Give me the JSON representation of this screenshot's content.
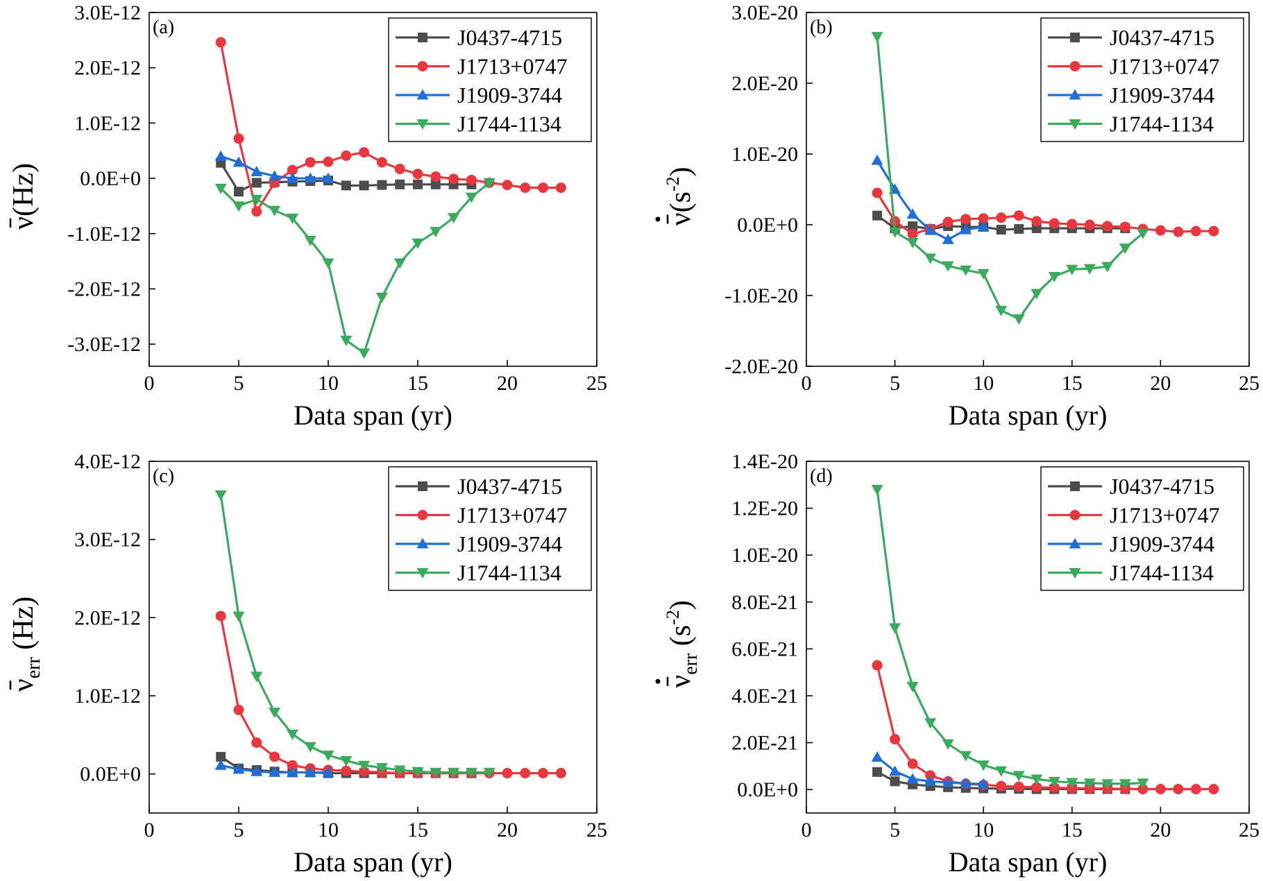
{
  "colors": {
    "J0437-4715": "#4d4d4d",
    "J1713+0747": "#e8383d",
    "J1909-3744": "#1f6fd6",
    "J1744-1134": "#3aab5c"
  },
  "chart_data": [
    {
      "type": "line",
      "panel_label": "(a)",
      "xlabel": "Data span (yr)",
      "ylabel": {
        "symbol": "ν",
        "overbar": true,
        "dot": false,
        "subscript": "",
        "unit": "(Hz)"
      },
      "xlim": [
        0,
        25
      ],
      "ylim": [
        -3.4e-12,
        3e-12
      ],
      "xticks": [
        0,
        5,
        10,
        15,
        20,
        25
      ],
      "yticks": [
        3e-12,
        2e-12,
        1e-12,
        0,
        -1e-12,
        -2e-12,
        -3e-12
      ],
      "ytick_labels": [
        "3.0E-12",
        "2.0E-12",
        "1.0E-12",
        "0.0E+0",
        "-1.0E-12",
        "-2.0E-12",
        "-3.0E-12"
      ],
      "legend_position": "top-right",
      "series": [
        {
          "name": "J0437-4715",
          "marker": "square",
          "x": [
            4,
            5,
            6,
            7,
            8,
            9,
            10,
            11,
            12,
            13,
            14,
            15,
            16,
            17,
            18
          ],
          "y": [
            2.8e-13,
            -2.4e-13,
            -8e-14,
            -7e-14,
            -6e-14,
            -5e-14,
            -4e-14,
            -1.3e-13,
            -1.3e-13,
            -1.2e-13,
            -1.1e-13,
            -1.1e-13,
            -1.1e-13,
            -1.1e-13,
            -1.1e-13
          ]
        },
        {
          "name": "J1713+0747",
          "marker": "circle",
          "x": [
            4,
            5,
            6,
            7,
            8,
            9,
            10,
            11,
            12,
            13,
            14,
            15,
            16,
            17,
            18,
            19,
            20,
            21,
            22,
            23
          ],
          "y": [
            2.46e-12,
            7.2e-13,
            -6e-13,
            -8e-14,
            1.5e-13,
            2.9e-13,
            3e-13,
            4.1e-13,
            4.7e-13,
            2.9e-13,
            1.7e-13,
            8e-14,
            3e-14,
            -1e-14,
            -3e-14,
            -8e-14,
            -1.2e-13,
            -1.7e-13,
            -1.7e-13,
            -1.7e-13
          ]
        },
        {
          "name": "J1909-3744",
          "marker": "triangle-up",
          "x": [
            4,
            5,
            6,
            7,
            8,
            9,
            10
          ],
          "y": [
            4e-13,
            2.9e-13,
            1.2e-13,
            4e-14,
            0,
            0,
            0
          ]
        },
        {
          "name": "J1744-1134",
          "marker": "triangle-down",
          "x": [
            4,
            5,
            6,
            7,
            8,
            9,
            10,
            11,
            12,
            13,
            14,
            15,
            16,
            17,
            18,
            19
          ],
          "y": [
            -1.8e-13,
            -5e-13,
            -3.8e-13,
            -5.8e-13,
            -7.2e-13,
            -1.12e-12,
            -1.53e-12,
            -2.93e-12,
            -3.16e-12,
            -2.15e-12,
            -1.53e-12,
            -1.17e-12,
            -9.6e-13,
            -7.1e-13,
            -3.4e-13,
            -8e-14
          ]
        }
      ]
    },
    {
      "type": "line",
      "panel_label": "(b)",
      "xlabel": "Data span (yr)",
      "ylabel": {
        "symbol": "ν",
        "overbar": true,
        "dot": true,
        "subscript": "",
        "unit": "(s",
        "unit_sup": "-2",
        "unit_tail": ")"
      },
      "xlim": [
        0,
        25
      ],
      "ylim": [
        -2e-20,
        3e-20
      ],
      "xticks": [
        0,
        5,
        10,
        15,
        20,
        25
      ],
      "yticks": [
        3e-20,
        2e-20,
        1e-20,
        0,
        -1e-20,
        -2e-20
      ],
      "ytick_labels": [
        "3.0E-20",
        "2.0E-20",
        "1.0E-20",
        "0.0E+0",
        "-1.0E-20",
        "-2.0E-20"
      ],
      "legend_position": "top-right",
      "series": [
        {
          "name": "J0437-4715",
          "marker": "square",
          "x": [
            4,
            5,
            6,
            7,
            8,
            9,
            10,
            11,
            12,
            13,
            14,
            15,
            16,
            17,
            18
          ],
          "y": [
            1.3e-21,
            -5e-22,
            -2e-22,
            -6e-22,
            -2e-22,
            -3e-22,
            -3e-22,
            -7e-22,
            -6e-22,
            -5e-22,
            -5e-22,
            -5e-22,
            -5e-22,
            -5e-22,
            -5e-22
          ]
        },
        {
          "name": "J1713+0747",
          "marker": "circle",
          "x": [
            4,
            5,
            6,
            7,
            8,
            9,
            10,
            11,
            12,
            13,
            14,
            15,
            16,
            17,
            18,
            19,
            20,
            21,
            22,
            23
          ],
          "y": [
            4.5e-21,
            5e-22,
            -1.3e-21,
            -6e-22,
            4e-22,
            8e-22,
            9e-22,
            1e-21,
            1.3e-21,
            5e-22,
            2e-22,
            1e-22,
            0,
            -2e-22,
            -3e-22,
            -6e-22,
            -8e-22,
            -1e-21,
            -9e-22,
            -9e-22
          ]
        },
        {
          "name": "J1909-3744",
          "marker": "triangle-up",
          "x": [
            4,
            5,
            6,
            7,
            8,
            9,
            10
          ],
          "y": [
            9.1e-21,
            5e-21,
            1.5e-21,
            -8e-22,
            -2.1e-21,
            -7e-22,
            -3e-22
          ]
        },
        {
          "name": "J1744-1134",
          "marker": "triangle-down",
          "x": [
            4,
            5,
            6,
            7,
            8,
            9,
            10,
            11,
            12,
            13,
            14,
            15,
            16,
            17,
            18,
            19
          ],
          "y": [
            2.66e-20,
            -1e-21,
            -2.5e-21,
            -4.7e-21,
            -5.8e-21,
            -6.4e-21,
            -6.9e-21,
            -1.21e-20,
            -1.33e-20,
            -9.7e-21,
            -7.3e-21,
            -6.3e-21,
            -6.2e-21,
            -5.9e-21,
            -3.3e-21,
            -1.2e-21
          ]
        }
      ]
    },
    {
      "type": "line",
      "panel_label": "(c)",
      "xlabel": "Data span (yr)",
      "ylabel": {
        "symbol": "ν",
        "overbar": true,
        "dot": false,
        "subscript": "err",
        "unit": " (Hz)"
      },
      "xlim": [
        0,
        25
      ],
      "ylim": [
        -5e-13,
        4e-12
      ],
      "xticks": [
        0,
        5,
        10,
        15,
        20,
        25
      ],
      "yticks": [
        4e-12,
        3e-12,
        2e-12,
        1e-12,
        0
      ],
      "ytick_labels": [
        "4.0E-12",
        "3.0E-12",
        "2.0E-12",
        "1.0E-12",
        "0.0E+0"
      ],
      "legend_position": "top-right",
      "series": [
        {
          "name": "J0437-4715",
          "marker": "square",
          "x": [
            4,
            5,
            6,
            7,
            8,
            9,
            10,
            11,
            12,
            13,
            14,
            15,
            16,
            17,
            18
          ],
          "y": [
            2.2e-13,
            7e-14,
            5e-14,
            3e-14,
            2e-14,
            2e-14,
            1e-14,
            1e-14,
            1e-14,
            1e-14,
            1e-14,
            1e-14,
            1e-14,
            1e-14,
            1e-14
          ]
        },
        {
          "name": "J1713+0747",
          "marker": "circle",
          "x": [
            4,
            5,
            6,
            7,
            8,
            9,
            10,
            11,
            12,
            13,
            14,
            15,
            16,
            17,
            18,
            19,
            20,
            21,
            22,
            23
          ],
          "y": [
            2.02e-12,
            8.2e-13,
            4e-13,
            2.2e-13,
            1.1e-13,
            7e-14,
            5e-14,
            4e-14,
            3e-14,
            2e-14,
            1e-14,
            1e-14,
            1e-14,
            1e-14,
            1e-14,
            1e-14,
            1e-14,
            1e-14,
            1e-14,
            1e-14
          ]
        },
        {
          "name": "J1909-3744",
          "marker": "triangle-up",
          "x": [
            4,
            5,
            6,
            7,
            8,
            9,
            10
          ],
          "y": [
            1.1e-13,
            6e-14,
            3e-14,
            2e-14,
            2e-14,
            2e-14,
            2e-14
          ]
        },
        {
          "name": "J1744-1134",
          "marker": "triangle-down",
          "x": [
            4,
            5,
            6,
            7,
            8,
            9,
            10,
            11,
            12,
            13,
            14,
            15,
            16,
            17,
            18,
            19
          ],
          "y": [
            3.57e-12,
            2.02e-12,
            1.25e-12,
            7.9e-13,
            5.1e-13,
            3.5e-13,
            2.4e-13,
            1.7e-13,
            1.1e-13,
            8e-14,
            5e-14,
            3e-14,
            2e-14,
            2e-14,
            2e-14,
            2e-14
          ]
        }
      ]
    },
    {
      "type": "line",
      "panel_label": "(d)",
      "xlabel": "Data span (yr)",
      "ylabel": {
        "symbol": "ν",
        "overbar": true,
        "dot": true,
        "subscript": "err",
        "unit": " (s",
        "unit_sup": "-2",
        "unit_tail": ")"
      },
      "xlim": [
        0,
        25
      ],
      "ylim": [
        -1e-21,
        1.4e-20
      ],
      "xticks": [
        0,
        5,
        10,
        15,
        20,
        25
      ],
      "yticks": [
        1.4e-20,
        1.2e-20,
        1e-20,
        8e-21,
        6e-21,
        4e-21,
        2e-21,
        0
      ],
      "ytick_labels": [
        "1.4E-20",
        "1.2E-20",
        "1.0E-20",
        "8.0E-21",
        "6.0E-21",
        "4.0E-21",
        "2.0E-21",
        "0.0E+0"
      ],
      "legend_position": "top-right",
      "series": [
        {
          "name": "J0437-4715",
          "marker": "square",
          "x": [
            4,
            5,
            6,
            7,
            8,
            9,
            10,
            11,
            12,
            13,
            14,
            15,
            16,
            17,
            18
          ],
          "y": [
            7.5e-22,
            3.5e-22,
            2.2e-22,
            1.5e-22,
            1e-22,
            7e-23,
            5e-23,
            4e-23,
            3e-23,
            2e-23,
            2e-23,
            2e-23,
            2e-23,
            2e-23,
            2e-23
          ]
        },
        {
          "name": "J1713+0747",
          "marker": "circle",
          "x": [
            4,
            5,
            6,
            7,
            8,
            9,
            10,
            11,
            12,
            13,
            14,
            15,
            16,
            17,
            18,
            19,
            20,
            21,
            22,
            23
          ],
          "y": [
            5.3e-21,
            2.15e-21,
            1.1e-21,
            6e-22,
            3.5e-22,
            2.5e-22,
            2e-22,
            1.5e-22,
            1.2e-22,
            1e-22,
            8e-23,
            6e-23,
            5e-23,
            4e-23,
            3e-23,
            2e-23,
            2e-23,
            2e-23,
            2e-23,
            2e-23
          ]
        },
        {
          "name": "J1909-3744",
          "marker": "triangle-up",
          "x": [
            4,
            5,
            6,
            7,
            8,
            9,
            10
          ],
          "y": [
            1.38e-21,
            7.8e-22,
            4.5e-22,
            3.5e-22,
            3e-22,
            2.6e-22,
            2.4e-22
          ]
        },
        {
          "name": "J1744-1134",
          "marker": "triangle-down",
          "x": [
            4,
            5,
            6,
            7,
            8,
            9,
            10,
            11,
            12,
            13,
            14,
            15,
            16,
            17,
            18,
            19
          ],
          "y": [
            1.28e-20,
            6.9e-21,
            4.4e-21,
            2.85e-21,
            1.95e-21,
            1.45e-21,
            1.05e-21,
            8e-22,
            6e-22,
            4.5e-22,
            3.5e-22,
            3e-22,
            2.8e-22,
            2.5e-22,
            2.5e-22,
            2.8e-22
          ]
        }
      ]
    }
  ]
}
